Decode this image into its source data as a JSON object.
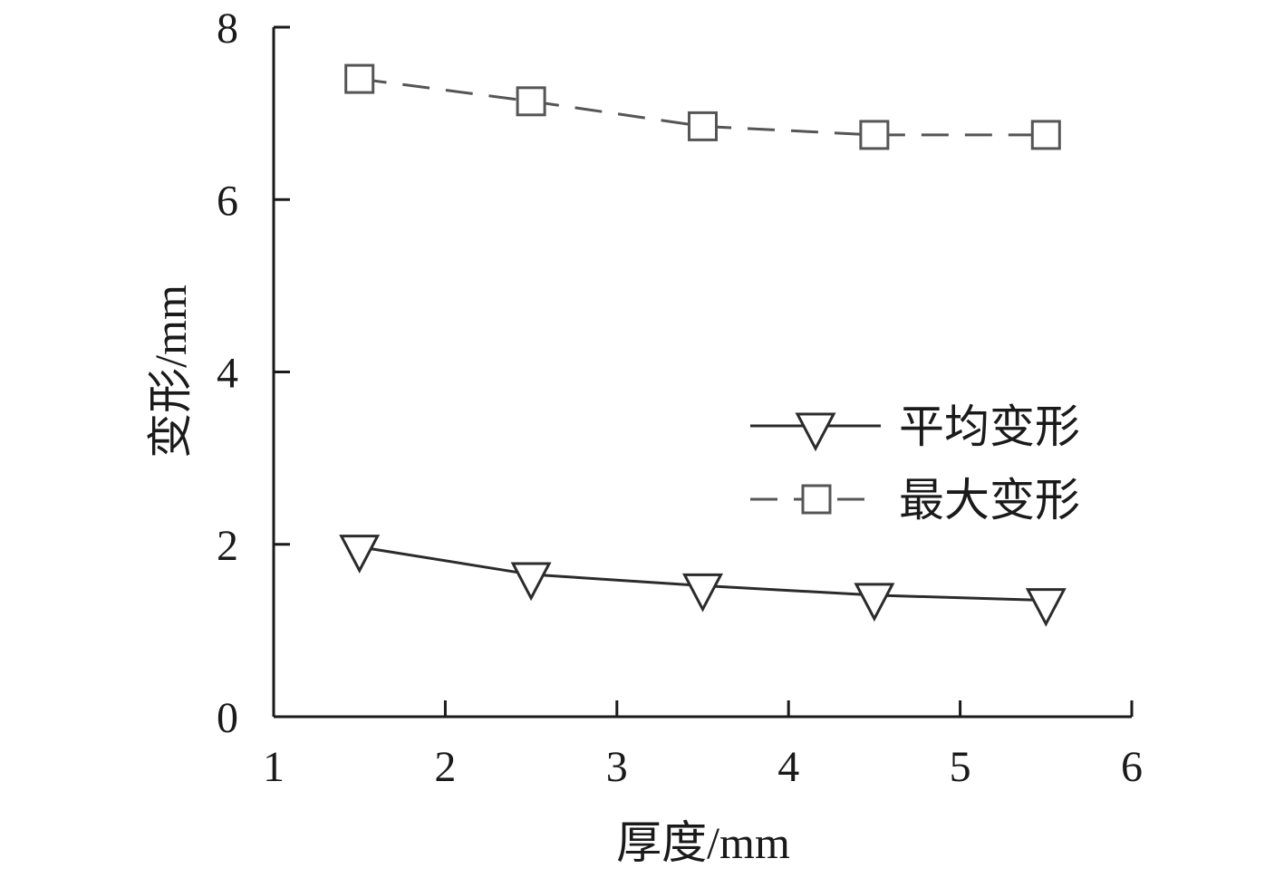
{
  "chart_data": {
    "type": "line",
    "title": "",
    "xlabel": "厚度/mm",
    "ylabel": "变形/mm",
    "xlim": [
      1,
      6
    ],
    "ylim": [
      0,
      8
    ],
    "xticks": [
      1,
      2,
      3,
      4,
      5,
      6
    ],
    "yticks": [
      0,
      2,
      4,
      6,
      8
    ],
    "grid": false,
    "legend_position": "right",
    "x": [
      1.5,
      2.5,
      3.5,
      4.5,
      5.5
    ],
    "series": [
      {
        "name": "平均变形",
        "values": [
          1.97,
          1.65,
          1.52,
          1.41,
          1.35
        ],
        "marker": "triangle-down",
        "line_style": "solid",
        "color": "#2b2b2b"
      },
      {
        "name": "最大变形",
        "values": [
          7.4,
          7.14,
          6.85,
          6.75,
          6.75
        ],
        "marker": "square",
        "line_style": "dashed",
        "color": "#555555"
      }
    ]
  }
}
